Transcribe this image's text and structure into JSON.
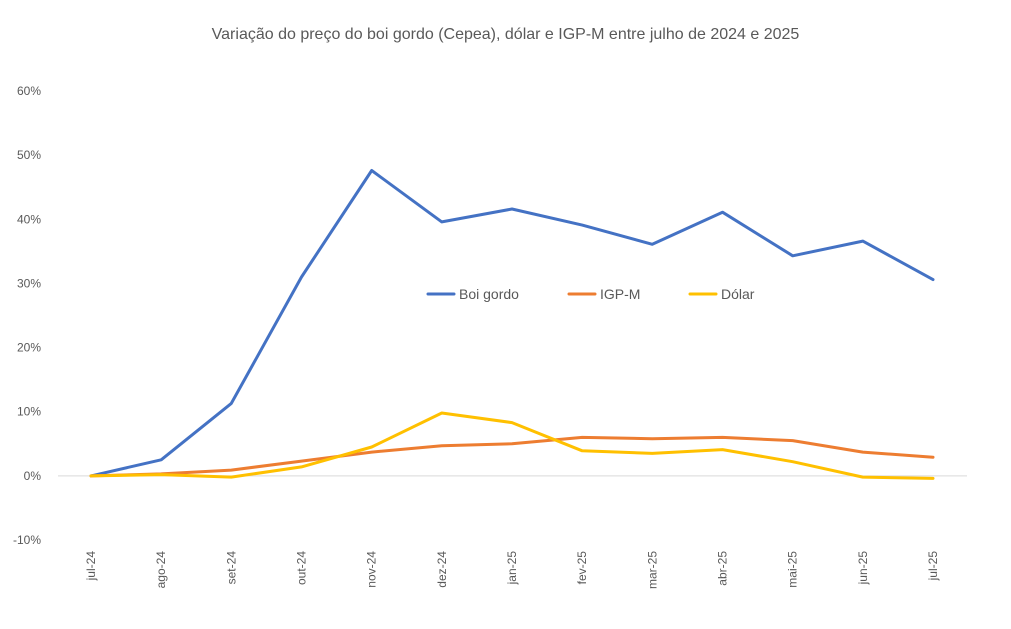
{
  "chart_data": {
    "type": "line",
    "title": "Variação do preço do boi gordo (Cepea), dólar e IGP-M entre julho de 2024 e 2025",
    "xlabel": "",
    "ylabel": "",
    "categories": [
      "jul-24",
      "ago-24",
      "set-24",
      "out-24",
      "nov-24",
      "dez-24",
      "jan-25",
      "fev-25",
      "mar-25",
      "abr-25",
      "mai-25",
      "jun-25",
      "jul-25"
    ],
    "ylim": [
      -10,
      60
    ],
    "yticks": [
      -10,
      0,
      10,
      20,
      30,
      40,
      50,
      60
    ],
    "ytick_labels": [
      "-10%",
      "0%",
      "10%",
      "20%",
      "30%",
      "40%",
      "50%",
      "60%"
    ],
    "grid": false,
    "legend_position": "center",
    "series": [
      {
        "name": "Boi gordo",
        "color": "#4472C4",
        "values": [
          0,
          2.5,
          11.3,
          31.0,
          47.6,
          39.6,
          41.6,
          39.1,
          36.1,
          41.1,
          34.3,
          36.6,
          30.6
        ]
      },
      {
        "name": "IGP-M",
        "color": "#ED7D31",
        "values": [
          0,
          0.3,
          0.9,
          2.3,
          3.7,
          4.7,
          5.0,
          6.0,
          5.8,
          6.0,
          5.5,
          3.7,
          2.9
        ]
      },
      {
        "name": "Dólar",
        "color": "#FFC000",
        "values": [
          0,
          0.2,
          -0.2,
          1.4,
          4.5,
          9.8,
          8.3,
          3.9,
          3.5,
          4.1,
          2.2,
          -0.2,
          -0.4
        ]
      }
    ]
  }
}
